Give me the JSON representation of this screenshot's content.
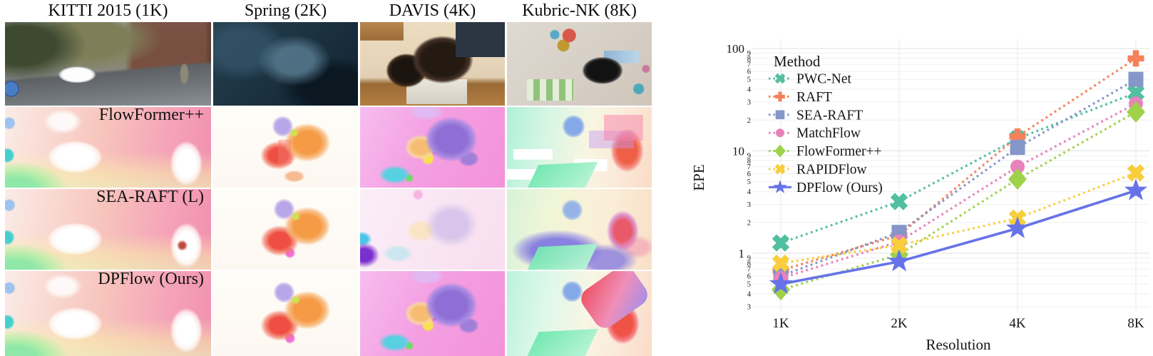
{
  "left_panel": {
    "columns": [
      "KITTI 2015 (1K)",
      "Spring (2K)",
      "DAVIS (4K)",
      "Kubric-NK (8K)"
    ],
    "row_labels": [
      "FlowFormer++",
      "SEA-RAFT (L)",
      "DPFlow (Ours)"
    ]
  },
  "chart_data": {
    "type": "line",
    "xlabel": "Resolution",
    "ylabel": "EPE",
    "x_categories": [
      "1K",
      "2K",
      "4K",
      "8K"
    ],
    "y_scale": "log",
    "ylim": [
      0.28,
      120
    ],
    "y_major_ticks": [
      1,
      10,
      100
    ],
    "y_minor_tick_labels": [
      2,
      3,
      4,
      5,
      6,
      7,
      8,
      9
    ],
    "grid": true,
    "legend_title": "Method",
    "legend_position": "upper-left",
    "series": [
      {
        "name": "PWC-Net",
        "color": "#52bfa0",
        "marker": "x",
        "line": "dotted",
        "values": [
          1.26,
          3.2,
          13.2,
          37
        ]
      },
      {
        "name": "RAFT",
        "color": "#f5805a",
        "marker": "plus",
        "line": "dotted",
        "values": [
          0.68,
          1.5,
          13.8,
          80
        ]
      },
      {
        "name": "SEA-RAFT",
        "color": "#8596c8",
        "marker": "square",
        "line": "dotted",
        "values": [
          0.6,
          1.6,
          10.8,
          50
        ]
      },
      {
        "name": "MatchFlow",
        "color": "#e783bc",
        "marker": "circle",
        "line": "dotted",
        "values": [
          0.57,
          1.3,
          7.0,
          29
        ]
      },
      {
        "name": "FlowFormer++",
        "color": "#9ed24a",
        "marker": "diamond",
        "line": "dotted",
        "values": [
          0.44,
          0.97,
          5.3,
          24
        ]
      },
      {
        "name": "RAPIDFlow",
        "color": "#f8ce3c",
        "marker": "x",
        "line": "dotted",
        "values": [
          0.8,
          1.2,
          2.2,
          6.1
        ]
      },
      {
        "name": "DPFlow (Ours)",
        "color": "#6673e8",
        "marker": "star",
        "line": "solid",
        "values": [
          0.5,
          0.83,
          1.75,
          4.1
        ]
      }
    ]
  }
}
